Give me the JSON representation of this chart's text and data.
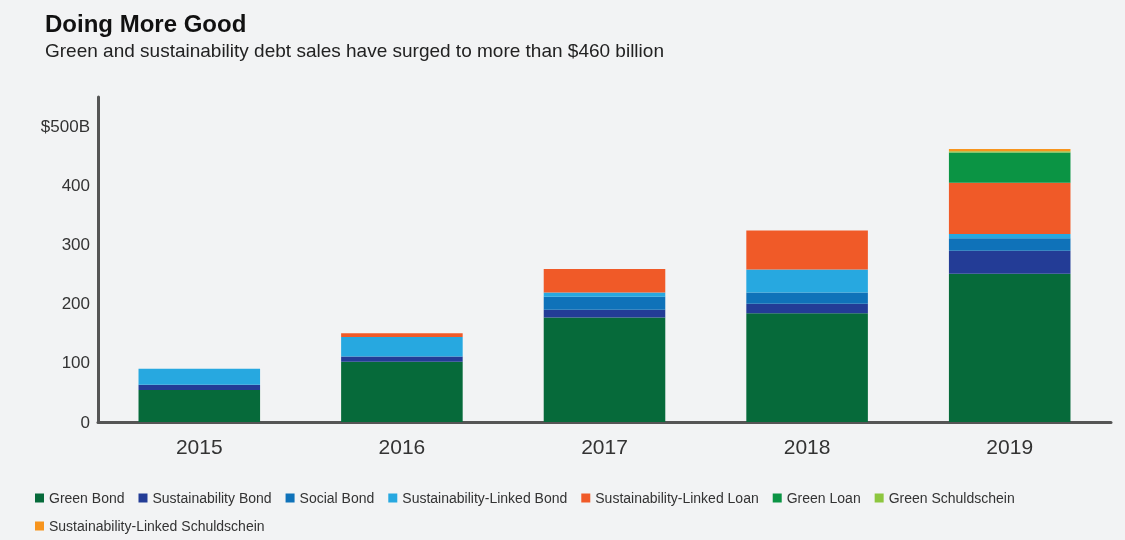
{
  "chart_data": {
    "type": "bar",
    "title": "Doing More Good",
    "subtitle": "Green and sustainability debt sales have surged to more than $460 billion",
    "categories": [
      "2015",
      "2016",
      "2017",
      "2018",
      "2019"
    ],
    "stacked": true,
    "series": [
      {
        "name": "Green Bond",
        "color": "#066a3a",
        "values": [
          54,
          102,
          177,
          184,
          251
        ]
      },
      {
        "name": "Sustainability Bond",
        "color": "#233c96",
        "values": [
          9,
          9,
          13,
          16,
          39
        ]
      },
      {
        "name": "Social Bond",
        "color": "#0f72b9",
        "values": [
          null,
          null,
          22,
          19,
          21
        ]
      },
      {
        "name": "Sustainability-Linked Bond",
        "color": "#27a8e0",
        "values": [
          27,
          33,
          7,
          39,
          7
        ]
      },
      {
        "name": "Sustainability-Linked Loan",
        "color": "#f05a28",
        "values": [
          null,
          6,
          40,
          66,
          87
        ]
      },
      {
        "name": "Green Loan",
        "color": "#0b9444",
        "values": [
          null,
          null,
          null,
          null,
          51
        ]
      },
      {
        "name": "Green Schuldschein",
        "color": "#8dc63f",
        "values": [
          null,
          null,
          null,
          null,
          2
        ]
      },
      {
        "name": "Sustainability-Linked Schuldschein",
        "color": "#f7941d",
        "values": [
          null,
          null,
          null,
          null,
          4
        ]
      }
    ],
    "ylim": [
      0,
      550
    ],
    "yticks": [
      0,
      100,
      200,
      300,
      400,
      {
        "value": 500,
        "label": "$500B"
      }
    ],
    "grid": false,
    "legend": "bottom"
  }
}
